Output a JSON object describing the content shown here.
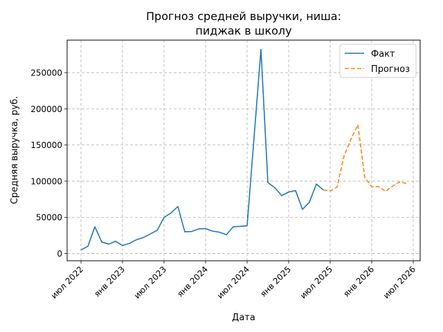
{
  "chart_data": {
    "type": "line",
    "title_lines": [
      "Прогноз средней выручки, ниша:",
      "пиджак в школу"
    ],
    "xlabel": "Дата",
    "ylabel": "Средняя выручка, руб.",
    "x_tick_labels": [
      "июл 2022",
      "янв 2023",
      "июл 2023",
      "янв 2024",
      "июл 2024",
      "янв 2025",
      "июл 2025",
      "янв 2026",
      "июл 2026"
    ],
    "x_ticks": [
      "2022-07",
      "2023-01",
      "2023-07",
      "2024-01",
      "2024-07",
      "2025-01",
      "2025-07",
      "2026-01",
      "2026-07"
    ],
    "y_ticks": [
      0,
      50000,
      100000,
      150000,
      200000,
      250000
    ],
    "y_tick_labels": [
      "0",
      "50000",
      "100000",
      "150000",
      "200000",
      "250000"
    ],
    "xlim": [
      "2022-05",
      "2026-08"
    ],
    "ylim": [
      -10000,
      295000
    ],
    "grid": true,
    "legend_position": "top-right",
    "series": [
      {
        "name": "Факт",
        "color": "#1f77b4",
        "style": "solid",
        "x": [
          "2022-07",
          "2022-08",
          "2022-09",
          "2022-10",
          "2022-11",
          "2022-12",
          "2023-01",
          "2023-02",
          "2023-03",
          "2023-04",
          "2023-05",
          "2023-06",
          "2023-07",
          "2023-08",
          "2023-09",
          "2023-10",
          "2023-11",
          "2023-12",
          "2024-01",
          "2024-02",
          "2024-03",
          "2024-04",
          "2024-05",
          "2024-06",
          "2024-07",
          "2024-08",
          "2024-09",
          "2024-10",
          "2024-11",
          "2024-12",
          "2025-01",
          "2025-02",
          "2025-03",
          "2025-04",
          "2025-05",
          "2025-06"
        ],
        "values": [
          5000,
          10000,
          37000,
          16000,
          13000,
          17000,
          11000,
          14000,
          19000,
          22000,
          27000,
          32000,
          50000,
          56000,
          65000,
          30000,
          30500,
          34000,
          34500,
          31000,
          29500,
          26000,
          37000,
          37500,
          38500,
          160000,
          282000,
          98000,
          91000,
          80000,
          85000,
          87000,
          61000,
          71000,
          96000,
          88000
        ]
      },
      {
        "name": "Прогноз",
        "color": "#ff7f0e",
        "style": "dashed",
        "x": [
          "2025-06",
          "2025-07",
          "2025-08",
          "2025-09",
          "2025-10",
          "2025-11",
          "2025-12",
          "2026-01",
          "2026-02",
          "2026-03",
          "2026-04",
          "2026-05",
          "2026-06"
        ],
        "values": [
          88000,
          86500,
          92000,
          135000,
          158000,
          178000,
          105000,
          92500,
          92500,
          86000,
          93000,
          99000,
          97000
        ]
      }
    ]
  }
}
